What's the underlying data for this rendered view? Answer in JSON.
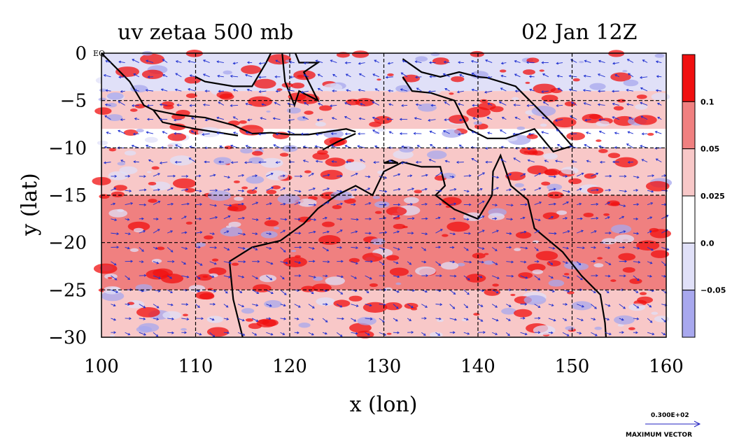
{
  "chart_data": {
    "type": "heatmap",
    "title": "uv zetaa 500 mb",
    "time_label": "02 Jan 12Z",
    "xlabel": "x (lon)",
    "ylabel": "y (lat)",
    "xlim": [
      100,
      160
    ],
    "ylim": [
      -30,
      0
    ],
    "x_ticks": [
      "100",
      "110",
      "120",
      "130",
      "140",
      "150",
      "160"
    ],
    "y_ticks": [
      "0",
      "−5",
      "−10",
      "−15",
      "−20",
      "−25",
      "−30"
    ],
    "y_tick_values": [
      0,
      -5,
      -10,
      -15,
      -20,
      -25,
      -30
    ],
    "x_tick_values": [
      100,
      110,
      120,
      130,
      140,
      150,
      160
    ],
    "equator_label": "EQ",
    "colorbar": {
      "levels": [
        "0.1",
        "0.05",
        "0.025",
        "0.0",
        "−0.05"
      ],
      "colors": [
        "#f01010",
        "#f08080",
        "#f8c8c8",
        "#ffffff",
        "#e0e0f8",
        "#a8a8ee"
      ]
    },
    "vector_legend": {
      "value": "0.300E+02",
      "label": "MAXIMUM VECTOR"
    },
    "grid": true,
    "field_bands": [
      {
        "lat_top": 0,
        "lat_bottom": -4,
        "color_index": 4
      },
      {
        "lat_top": -4,
        "lat_bottom": -8,
        "color_index": 2
      },
      {
        "lat_top": -8,
        "lat_bottom": -10,
        "color_index": 3
      },
      {
        "lat_top": -10,
        "lat_bottom": -15,
        "color_index": 2
      },
      {
        "lat_top": -15,
        "lat_bottom": -20,
        "color_index": 1
      },
      {
        "lat_top": -20,
        "lat_bottom": -25,
        "color_index": 1
      },
      {
        "lat_top": -25,
        "lat_bottom": -30,
        "color_index": 2
      }
    ]
  }
}
